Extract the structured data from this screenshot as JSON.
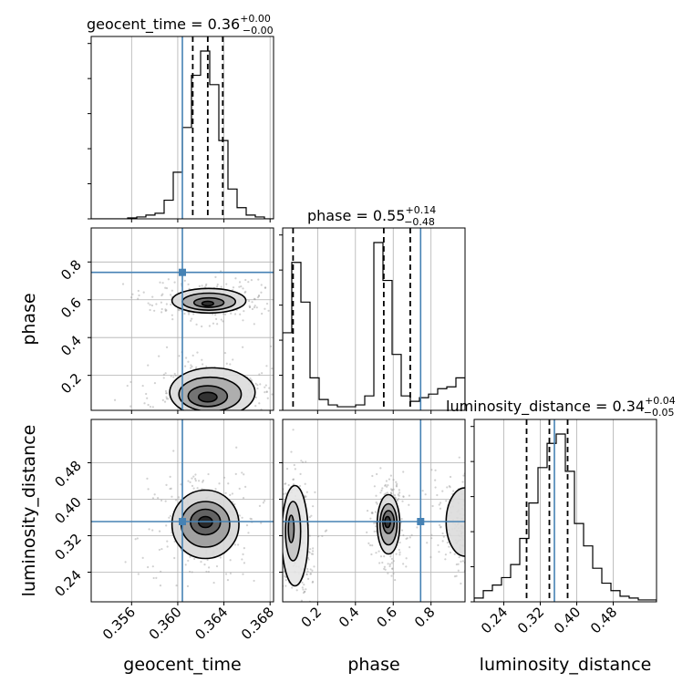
{
  "chart_data": {
    "type": "corner",
    "grid": true,
    "truth_color": "#4682b4",
    "parameters": [
      "geocent_time",
      "phase",
      "luminosity_distance"
    ],
    "truths": {
      "geocent_time": 0.3604,
      "phase": 0.745,
      "luminosity_distance": 0.351
    },
    "ranges": {
      "geocent_time": [
        0.3525,
        0.3683
      ],
      "phase": [
        0.015,
        0.98
      ],
      "luminosity_distance": [
        0.175,
        0.575
      ]
    },
    "ticks": {
      "geocent_time": [
        0.356,
        0.36,
        0.364,
        0.368
      ],
      "phase": [
        0.2,
        0.4,
        0.6,
        0.8
      ],
      "luminosity_distance": [
        0.24,
        0.32,
        0.4,
        0.48
      ]
    },
    "tick_labels": {
      "geocent_time": [
        "0.356",
        "0.360",
        "0.364",
        "0.368"
      ],
      "phase": [
        "0.2",
        "0.4",
        "0.6",
        "0.8"
      ],
      "luminosity_distance": [
        "0.24",
        "0.32",
        "0.40",
        "0.48"
      ]
    },
    "axis_labels": {
      "x": [
        "geocent_time",
        "phase",
        "luminosity_distance"
      ],
      "y": [
        "phase",
        "luminosity_distance"
      ]
    },
    "titles": [
      {
        "param": "geocent_time",
        "text": "geocent_time = 0.36",
        "sup": "+0.00",
        "sub": "−0.00"
      },
      {
        "param": "phase",
        "text": "phase = 0.55",
        "sup": "+0.14",
        "sub": "−0.48"
      },
      {
        "param": "luminosity_distance",
        "text": "luminosity_distance = 0.34",
        "sup": "+0.04",
        "sub": "−0.05"
      }
    ],
    "quantiles": {
      "geocent_time": [
        0.3613,
        0.3626,
        0.3639
      ],
      "phase": [
        0.07,
        0.55,
        0.69
      ],
      "luminosity_distance": [
        0.29,
        0.34,
        0.38
      ]
    },
    "histograms": {
      "geocent_time": {
        "edges": [
          0.3525,
          0.35329,
          0.35408,
          0.35487,
          0.35566,
          0.35645,
          0.35724,
          0.35803,
          0.35882,
          0.35961,
          0.3604,
          0.36119,
          0.36198,
          0.36277,
          0.36356,
          0.36435,
          0.36514,
          0.36593,
          0.36672,
          0.36751,
          0.3683
        ],
        "counts": [
          0,
          0,
          0,
          0,
          0.005,
          0.01,
          0.02,
          0.03,
          0.1,
          0.25,
          0.49,
          0.77,
          0.9,
          0.72,
          0.42,
          0.16,
          0.06,
          0.02,
          0.01,
          0.0
        ]
      },
      "phase": {
        "edges": [
          0.015,
          0.06325,
          0.1115,
          0.15975,
          0.208,
          0.25625,
          0.3045,
          0.35275,
          0.401,
          0.44925,
          0.4975,
          0.54575,
          0.594,
          0.64225,
          0.6905,
          0.73875,
          0.787,
          0.83525,
          0.8835,
          0.93175,
          0.98
        ],
        "counts": [
          0.43,
          0.82,
          0.6,
          0.18,
          0.06,
          0.03,
          0.02,
          0.02,
          0.03,
          0.08,
          0.93,
          0.72,
          0.31,
          0.08,
          0.05,
          0.07,
          0.09,
          0.12,
          0.13,
          0.18
        ]
      },
      "luminosity_distance": {
        "edges": [
          0.175,
          0.195,
          0.215,
          0.235,
          0.255,
          0.275,
          0.295,
          0.315,
          0.335,
          0.355,
          0.375,
          0.395,
          0.415,
          0.435,
          0.455,
          0.475,
          0.495,
          0.515,
          0.535,
          0.555,
          0.575
        ],
        "counts": [
          0.02,
          0.06,
          0.09,
          0.13,
          0.2,
          0.34,
          0.53,
          0.72,
          0.85,
          0.9,
          0.7,
          0.42,
          0.3,
          0.18,
          0.1,
          0.06,
          0.03,
          0.02,
          0.01,
          0.01
        ]
      }
    },
    "contours": {
      "phase_vs_geocent_time": [
        {
          "cx": 0.3626,
          "cy": 0.58,
          "rx": 0.0005,
          "ry": 0.012,
          "fill": "#2b2b2b"
        },
        {
          "cx": 0.3627,
          "cy": 0.585,
          "rx": 0.0013,
          "ry": 0.025,
          "fill": "#6d6d6d"
        },
        {
          "cx": 0.3627,
          "cy": 0.59,
          "rx": 0.0023,
          "ry": 0.045,
          "fill": "#a8a8a8"
        },
        {
          "cx": 0.3627,
          "cy": 0.595,
          "rx": 0.0032,
          "ry": 0.065,
          "fill": "#dcdcdc"
        },
        {
          "cx": 0.3626,
          "cy": 0.085,
          "rx": 0.0008,
          "ry": 0.025,
          "fill": "#2b2b2b"
        },
        {
          "cx": 0.3626,
          "cy": 0.09,
          "rx": 0.0017,
          "ry": 0.055,
          "fill": "#6d6d6d"
        },
        {
          "cx": 0.3628,
          "cy": 0.1,
          "rx": 0.0027,
          "ry": 0.09,
          "fill": "#a8a8a8"
        },
        {
          "cx": 0.363,
          "cy": 0.11,
          "rx": 0.0037,
          "ry": 0.13,
          "fill": "#dcdcdc"
        }
      ],
      "luminosity_distance_vs_geocent_time": [
        {
          "cx": 0.3624,
          "cy": 0.35,
          "rx": 0.0006,
          "ry": 0.012,
          "fill": "#222222"
        },
        {
          "cx": 0.3624,
          "cy": 0.35,
          "rx": 0.0013,
          "ry": 0.028,
          "fill": "#5c5c5c"
        },
        {
          "cx": 0.3624,
          "cy": 0.345,
          "rx": 0.0021,
          "ry": 0.05,
          "fill": "#9a9a9a"
        },
        {
          "cx": 0.3624,
          "cy": 0.345,
          "rx": 0.0029,
          "ry": 0.075,
          "fill": "#d6d6d6"
        }
      ],
      "luminosity_distance_vs_phase": [
        {
          "cx": 0.57,
          "cy": 0.35,
          "rx": 0.015,
          "ry": 0.012,
          "fill": "#2b2b2b"
        },
        {
          "cx": 0.575,
          "cy": 0.35,
          "rx": 0.03,
          "ry": 0.025,
          "fill": "#6d6d6d"
        },
        {
          "cx": 0.575,
          "cy": 0.345,
          "rx": 0.045,
          "ry": 0.045,
          "fill": "#a8a8a8"
        },
        {
          "cx": 0.575,
          "cy": 0.345,
          "rx": 0.06,
          "ry": 0.065,
          "fill": "#dcdcdc"
        },
        {
          "cx": 0.06,
          "cy": 0.335,
          "rx": 0.015,
          "ry": 0.03,
          "fill": "#8a8a8a"
        },
        {
          "cx": 0.07,
          "cy": 0.33,
          "rx": 0.04,
          "ry": 0.065,
          "fill": "#c4c4c4"
        },
        {
          "cx": 0.08,
          "cy": 0.32,
          "rx": 0.07,
          "ry": 0.11,
          "fill": "#e6e6e6"
        },
        {
          "cx": 0.98,
          "cy": 0.35,
          "rx": 0.1,
          "ry": 0.075,
          "fill": "#dcdcdc"
        }
      ]
    }
  }
}
